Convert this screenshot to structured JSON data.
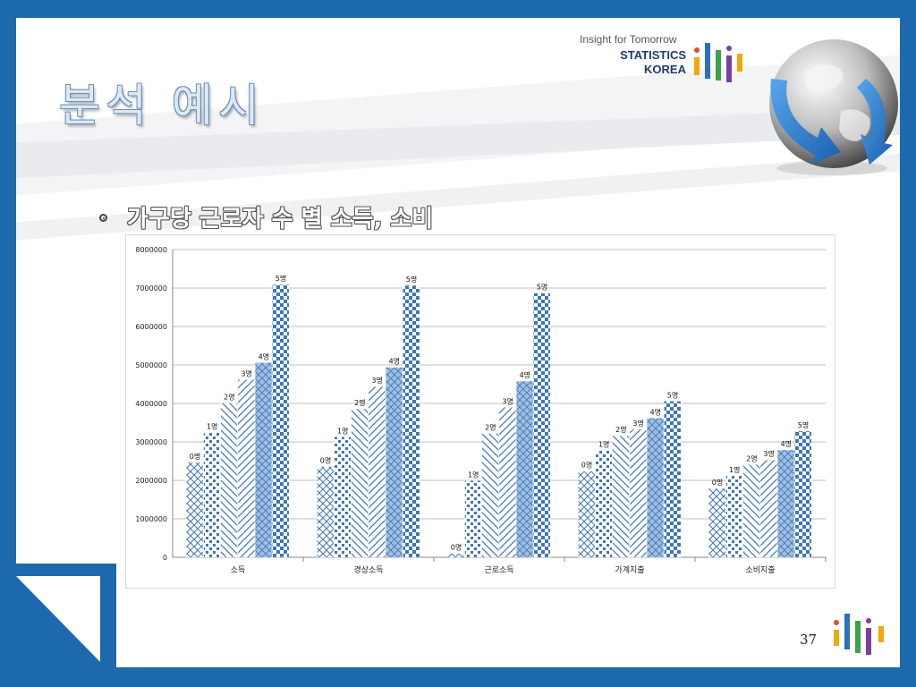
{
  "slide": {
    "title": "분석 예시",
    "bullet": "가구당 근로자 수 별 소득, 소비",
    "page_number": "37"
  },
  "brand": {
    "tagline": "Insight for Tomorrow",
    "name_line1": "STATISTICS",
    "name_line2": "KOREA"
  },
  "colors": {
    "frame": "#1c6aad",
    "series_fill": "#3f75b5",
    "gridline": "#bfbfbf"
  },
  "icons": [
    "globe-arrows-icon",
    "statistics-korea-bars-logo"
  ],
  "chart_data": {
    "type": "bar",
    "categories": [
      "소득",
      "경상소득",
      "근로소득",
      "가계지출",
      "소비지출"
    ],
    "series": [
      {
        "name": "0명",
        "values": [
          2470000,
          2360000,
          100000,
          2240000,
          1790000
        ]
      },
      {
        "name": "1명",
        "values": [
          3250000,
          3130000,
          1990000,
          2780000,
          2120000
        ]
      },
      {
        "name": "2명",
        "values": [
          4010000,
          3860000,
          3220000,
          3160000,
          2410000
        ]
      },
      {
        "name": "3명",
        "values": [
          4620000,
          4440000,
          3900000,
          3330000,
          2530000
        ]
      },
      {
        "name": "4명",
        "values": [
          5060000,
          4940000,
          4580000,
          3620000,
          2790000
        ]
      },
      {
        "name": "5명",
        "values": [
          7090000,
          7070000,
          6870000,
          4060000,
          3280000
        ]
      }
    ],
    "y_ticks": [
      "0",
      "1000000",
      "2000000",
      "3000000",
      "4000000",
      "5000000",
      "6000000",
      "7000000",
      "8000000"
    ],
    "ylim": [
      0,
      8000000
    ],
    "grid": true,
    "data_labels": "series name above each bar"
  }
}
